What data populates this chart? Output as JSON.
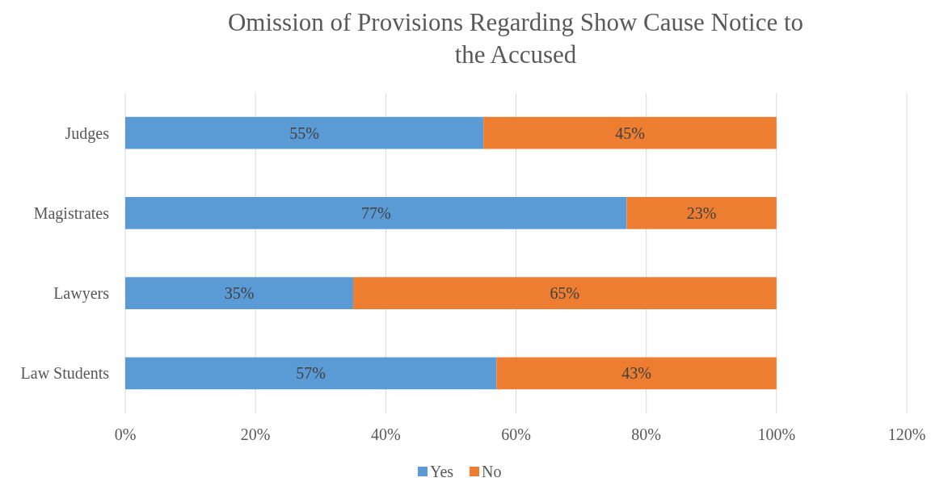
{
  "chart_data": {
    "type": "bar",
    "orientation": "horizontal",
    "stacked": true,
    "title": "Omission of Provisions Regarding Show Cause Notice to the Accused",
    "categories": [
      "Judges",
      "Magistrates",
      "Lawyers",
      "Law Students"
    ],
    "series": [
      {
        "name": "Yes",
        "color": "#5b9bd5",
        "values": [
          55,
          77,
          35,
          57
        ],
        "value_labels": [
          "55%",
          "77%",
          "35%",
          "57%"
        ]
      },
      {
        "name": "No",
        "color": "#ed7d31",
        "values": [
          45,
          23,
          65,
          43
        ],
        "value_labels": [
          "45%",
          "23%",
          "65%",
          "43%"
        ]
      }
    ],
    "xlim": [
      0,
      120
    ],
    "xticks": [
      {
        "value": 0,
        "label": "0%"
      },
      {
        "value": 20,
        "label": "20%"
      },
      {
        "value": 40,
        "label": "40%"
      },
      {
        "value": 60,
        "label": "60%"
      },
      {
        "value": 80,
        "label": "80%"
      },
      {
        "value": 100,
        "label": "100%"
      },
      {
        "value": 120,
        "label": "120%"
      }
    ],
    "grid": "x",
    "legend": "bottom"
  }
}
